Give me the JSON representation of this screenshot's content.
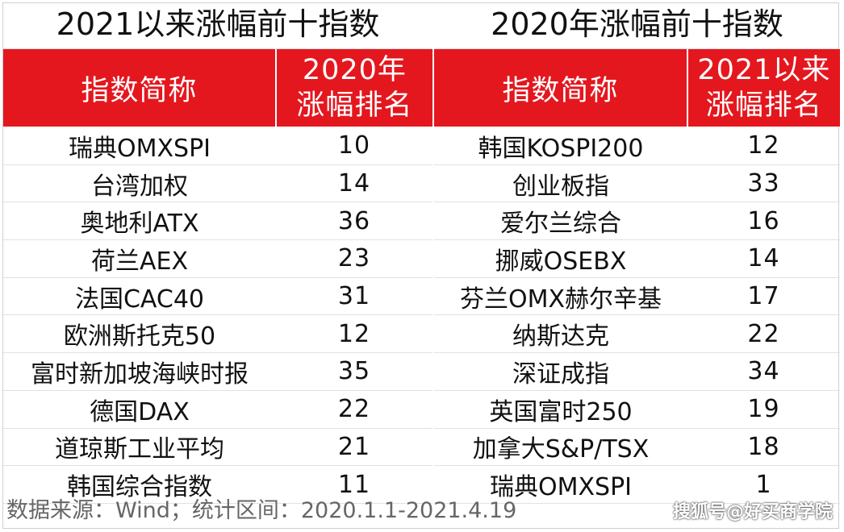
{
  "left_panel": {
    "title": "2021以来涨幅前十指数",
    "header": {
      "name_col": "指数简称",
      "rank_col_line1": "2020年",
      "rank_col_line2": "涨幅排名"
    },
    "rows": [
      {
        "name": "瑞典OMXSPI",
        "rank": "10"
      },
      {
        "name": "台湾加权",
        "rank": "14"
      },
      {
        "name": "奥地利ATX",
        "rank": "36"
      },
      {
        "name": "荷兰AEX",
        "rank": "23"
      },
      {
        "name": "法国CAC40",
        "rank": "31"
      },
      {
        "name": "欧洲斯托克50",
        "rank": "12"
      },
      {
        "name": "富时新加坡海峡时报",
        "rank": "35"
      },
      {
        "name": "德国DAX",
        "rank": "22"
      },
      {
        "name": "道琼斯工业平均",
        "rank": "21"
      },
      {
        "name": "韩国综合指数",
        "rank": "11"
      }
    ]
  },
  "right_panel": {
    "title": "2020年涨幅前十指数",
    "header": {
      "name_col": "指数简称",
      "rank_col_line1": "2021以来",
      "rank_col_line2": "涨幅排名"
    },
    "rows": [
      {
        "name": "韩国KOSPI200",
        "rank": "12"
      },
      {
        "name": "创业板指",
        "rank": "33"
      },
      {
        "name": "爱尔兰综合",
        "rank": "16"
      },
      {
        "name": "挪威OSEBX",
        "rank": "14"
      },
      {
        "name": "芬兰OMX赫尔辛基",
        "rank": "17"
      },
      {
        "name": "纳斯达克",
        "rank": "22"
      },
      {
        "name": "深证成指",
        "rank": "34"
      },
      {
        "name": "英国富时250",
        "rank": "19"
      },
      {
        "name": "加拿大S&P/TSX",
        "rank": "18"
      },
      {
        "name": "瑞典OMXSPI",
        "rank": "1"
      }
    ]
  },
  "footer": {
    "source": "数据来源：Wind；统计区间：2020.1.1-2021.4.19"
  },
  "watermark": {
    "text": "搜狐号@好买商学院"
  },
  "colors": {
    "header_bg": "#e4171e",
    "header_text": "#ffffff"
  }
}
